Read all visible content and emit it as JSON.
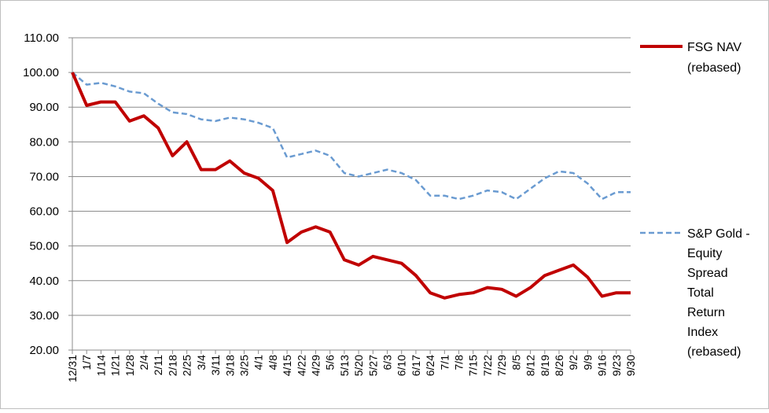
{
  "chart_data": {
    "type": "line",
    "title": "",
    "xlabel": "",
    "ylabel": "",
    "ylim": [
      20,
      110
    ],
    "y_ticks": [
      "20.00",
      "30.00",
      "40.00",
      "50.00",
      "60.00",
      "70.00",
      "80.00",
      "90.00",
      "100.00",
      "110.00"
    ],
    "x_tick_labels": [
      "12/31",
      "1/7",
      "1/14",
      "1/21",
      "1/28",
      "2/4",
      "2/11",
      "2/18",
      "2/25",
      "3/4",
      "3/11",
      "3/18",
      "3/25",
      "4/1",
      "4/8",
      "4/15",
      "4/22",
      "4/29",
      "5/6",
      "5/13",
      "5/20",
      "5/27",
      "6/3",
      "6/10",
      "6/17",
      "6/24",
      "7/1",
      "7/8",
      "7/15",
      "7/22",
      "7/29",
      "8/5",
      "8/12",
      "8/19",
      "8/26",
      "9/2",
      "9/9",
      "9/16",
      "9/23",
      "9/30"
    ],
    "gridlines": "horizontal",
    "legend_position": "right",
    "series": [
      {
        "name": "FSG NAV (rebased)",
        "color": "#c00000",
        "style": "solid",
        "values": [
          100.0,
          90.5,
          91.5,
          91.5,
          86.0,
          87.5,
          84.0,
          76.0,
          80.0,
          72.0,
          72.0,
          74.5,
          71.0,
          69.5,
          66.0,
          51.0,
          54.0,
          55.5,
          54.0,
          46.0,
          44.5,
          47.0,
          46.0,
          45.0,
          41.5,
          36.5,
          35.0,
          36.0,
          36.5,
          38.0,
          37.5,
          35.5,
          38.0,
          41.5,
          43.0,
          44.5,
          41.0,
          35.5,
          36.5,
          36.5
        ]
      },
      {
        "name": "S&P Gold - Equity Spread Total Return Index (rebased)",
        "color": "#6a9bd1",
        "style": "dashed",
        "values": [
          100.0,
          96.5,
          97.0,
          96.0,
          94.5,
          94.0,
          91.0,
          88.5,
          88.0,
          86.5,
          86.0,
          87.0,
          86.5,
          85.5,
          84.0,
          75.5,
          76.5,
          77.5,
          76.0,
          71.0,
          70.0,
          71.0,
          72.0,
          71.0,
          69.0,
          64.5,
          64.5,
          63.5,
          64.5,
          66.0,
          65.5,
          63.5,
          66.5,
          69.5,
          71.5,
          71.0,
          68.0,
          63.5,
          65.5,
          65.5
        ]
      }
    ]
  },
  "legend": {
    "nav_lines": [
      "FSG NAV",
      "(rebased)"
    ],
    "spread_lines": [
      "S&P Gold -",
      "Equity",
      "Spread",
      "Total",
      "Return",
      "Index",
      "(rebased)"
    ]
  }
}
